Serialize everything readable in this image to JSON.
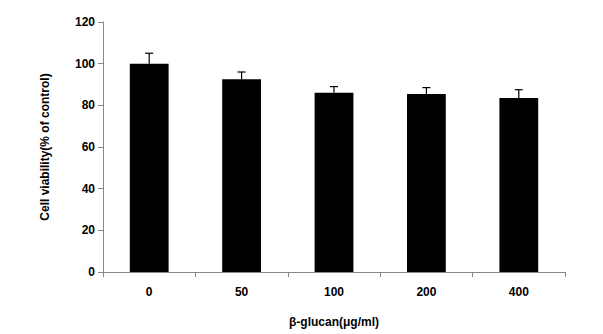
{
  "chart_data": {
    "type": "bar",
    "categories": [
      "0",
      "50",
      "100",
      "200",
      "400"
    ],
    "values": [
      100,
      92.5,
      86,
      85.5,
      83.5
    ],
    "errors": [
      5,
      3.5,
      3,
      3,
      4
    ],
    "color": "#000000",
    "xlabel": "β-glucan(μg/ml)",
    "ylabel": "Cell viability(% of control)",
    "ylim": [
      0,
      120
    ],
    "yticks": [
      0,
      20,
      40,
      60,
      80,
      100,
      120
    ],
    "grid": false
  }
}
